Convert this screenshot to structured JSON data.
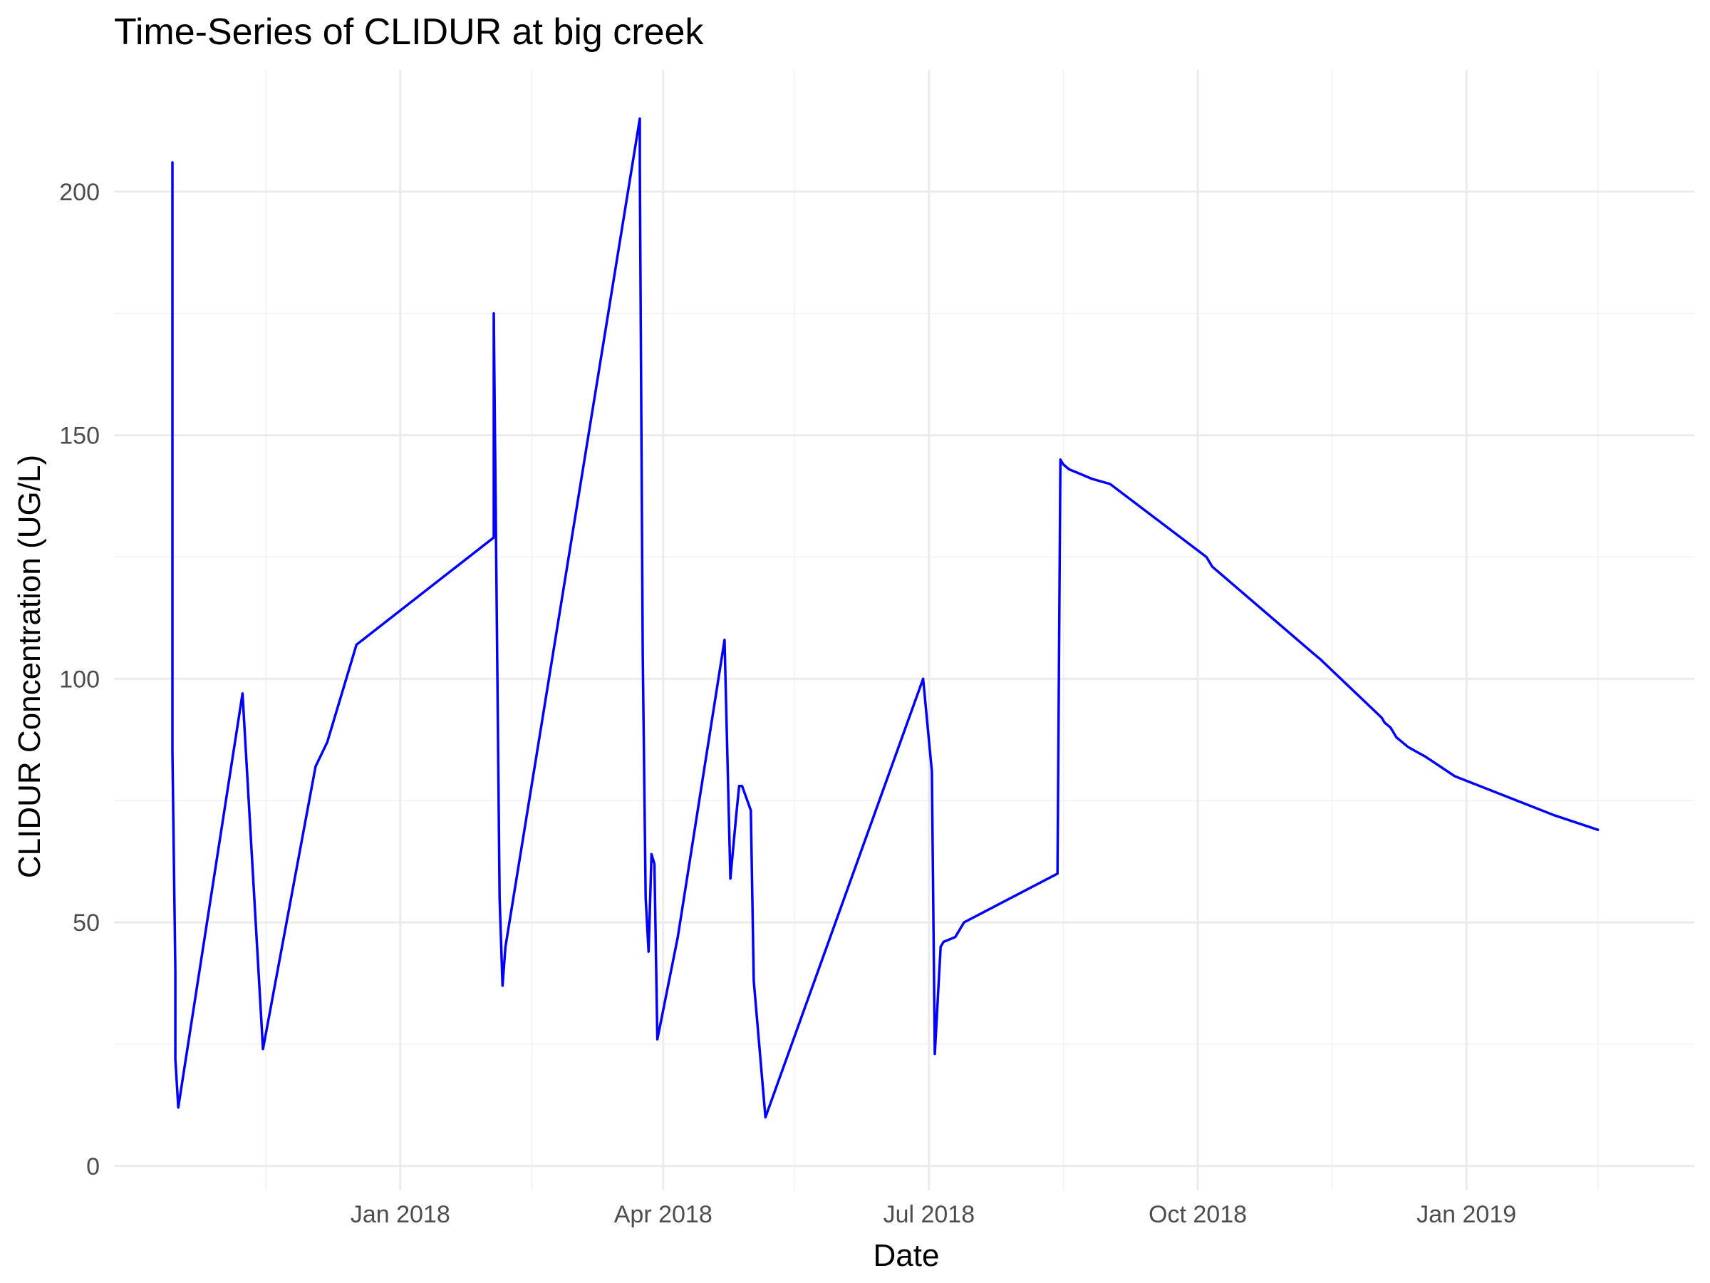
{
  "chart_data": {
    "type": "line",
    "title": "Time-Series of CLIDUR at big creek",
    "xlabel": "Date",
    "ylabel": "CLIDUR Concentration (UG/L)",
    "xlim": [
      "2017-09-25",
      "2019-03-20"
    ],
    "ylim": [
      -5,
      225
    ],
    "grid": true,
    "x_ticks": [
      {
        "date": "2018-01-01",
        "label": "Jan 2018"
      },
      {
        "date": "2018-04-01",
        "label": "Apr 2018"
      },
      {
        "date": "2018-07-01",
        "label": "Jul 2018"
      },
      {
        "date": "2018-10-01",
        "label": "Oct 2018"
      },
      {
        "date": "2019-01-01",
        "label": "Jan 2019"
      }
    ],
    "x_minor_ticks": [
      "2017-11-16",
      "2018-02-15",
      "2018-05-16",
      "2018-08-16",
      "2018-11-16",
      "2019-02-15"
    ],
    "y_ticks": [
      0,
      50,
      100,
      150,
      200
    ],
    "y_minor_ticks": [
      25,
      75,
      125,
      175
    ],
    "series": [
      {
        "color": "#0000ff",
        "x": [
          "2017-10-15",
          "2017-10-15",
          "2017-10-16",
          "2017-10-16",
          "2017-10-17",
          "2017-11-08",
          "2017-11-15",
          "2017-12-03",
          "2017-12-07",
          "2017-12-17",
          "2018-02-02",
          "2018-02-02",
          "2018-02-04",
          "2018-02-05",
          "2018-02-06",
          "2018-03-24",
          "2018-03-24",
          "2018-03-25",
          "2018-03-26",
          "2018-03-27",
          "2018-03-28",
          "2018-03-29",
          "2018-03-30",
          "2018-04-06",
          "2018-04-22",
          "2018-04-24",
          "2018-04-26",
          "2018-04-27",
          "2018-04-28",
          "2018-05-01",
          "2018-05-02",
          "2018-05-06",
          "2018-06-29",
          "2018-07-02",
          "2018-07-03",
          "2018-07-05",
          "2018-07-06",
          "2018-07-10",
          "2018-07-11",
          "2018-07-12",
          "2018-07-13",
          "2018-08-14",
          "2018-08-15",
          "2018-08-16",
          "2018-08-18",
          "2018-08-22",
          "2018-08-26",
          "2018-09-01",
          "2018-10-04",
          "2018-10-05",
          "2018-10-06",
          "2018-11-10",
          "2018-11-12",
          "2018-12-03",
          "2018-12-04",
          "2018-12-06",
          "2018-12-07",
          "2018-12-08",
          "2018-12-10",
          "2018-12-12",
          "2018-12-15",
          "2018-12-18",
          "2018-12-28",
          "2019-01-31",
          "2019-02-15"
        ],
        "y": [
          206,
          85,
          40,
          22,
          12,
          97,
          24,
          82,
          87,
          107,
          129,
          175,
          55,
          37,
          45,
          215,
          205,
          105,
          55,
          44,
          64,
          62,
          26,
          47,
          108,
          59,
          72,
          78,
          78,
          73,
          38,
          10,
          100,
          81,
          23,
          45,
          46,
          47,
          48,
          49,
          50,
          60,
          145,
          144,
          143,
          142,
          141,
          140,
          125,
          124,
          123,
          105,
          104,
          92,
          91,
          90,
          89,
          88,
          87,
          86,
          85,
          84,
          80,
          72,
          69
        ]
      }
    ]
  }
}
